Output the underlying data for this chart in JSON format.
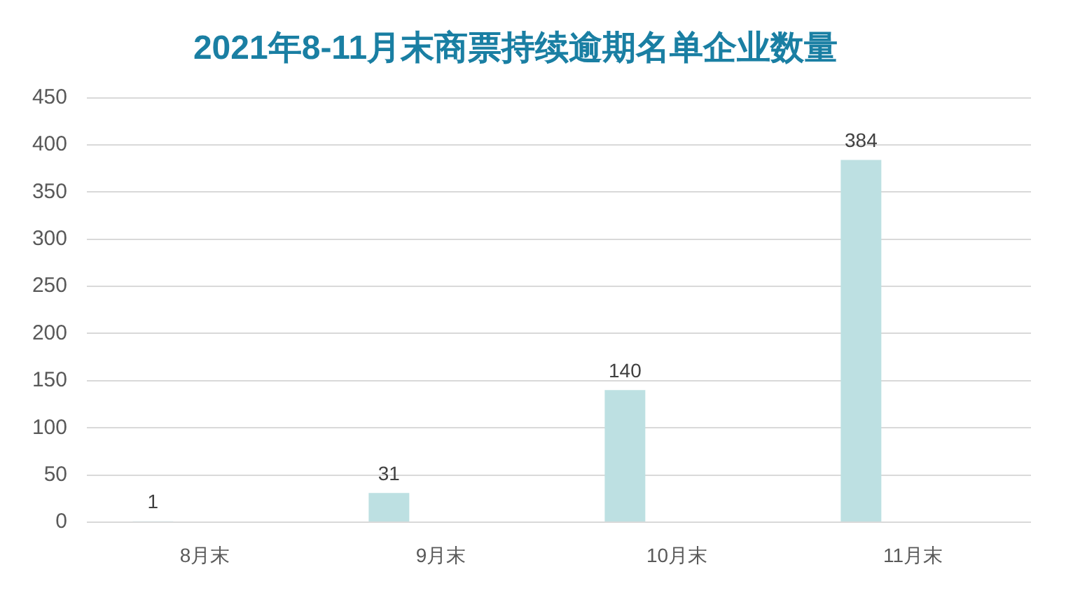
{
  "chart_data": {
    "type": "bar",
    "title": "2021年8-11月末商票持续逾期名单企业数量",
    "categories": [
      "8月末",
      "9月末",
      "10月末",
      "11月末"
    ],
    "values": [
      1,
      31,
      140,
      384
    ],
    "color": "#bde0e2",
    "ylim": [
      0,
      450
    ],
    "yticks": [
      0,
      50,
      100,
      150,
      200,
      250,
      300,
      350,
      400,
      450
    ],
    "grid": "y",
    "data_labels": true
  }
}
